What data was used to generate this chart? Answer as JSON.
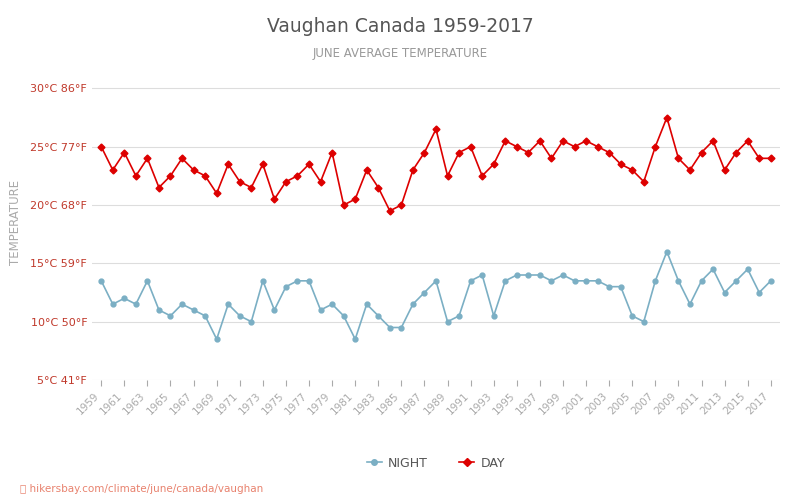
{
  "title": "Vaughan Canada 1959-2017",
  "subtitle": "JUNE AVERAGE TEMPERATURE",
  "ylabel": "TEMPERATURE",
  "footer": "hikersbay.com/climate/june/canada/vaughan",
  "years": [
    1959,
    1960,
    1961,
    1962,
    1963,
    1964,
    1965,
    1966,
    1967,
    1968,
    1969,
    1970,
    1971,
    1972,
    1973,
    1974,
    1975,
    1976,
    1977,
    1978,
    1979,
    1980,
    1981,
    1982,
    1983,
    1984,
    1985,
    1986,
    1987,
    1988,
    1989,
    1990,
    1991,
    1992,
    1993,
    1994,
    1995,
    1996,
    1997,
    1998,
    1999,
    2000,
    2001,
    2002,
    2003,
    2004,
    2005,
    2006,
    2007,
    2008,
    2009,
    2010,
    2011,
    2012,
    2013,
    2014,
    2015,
    2016,
    2017
  ],
  "day_temps": [
    25.0,
    23.0,
    24.5,
    22.5,
    24.0,
    21.5,
    22.5,
    24.0,
    23.0,
    22.5,
    21.0,
    23.5,
    22.0,
    21.5,
    23.5,
    20.5,
    22.0,
    22.5,
    23.5,
    22.0,
    24.5,
    20.0,
    20.5,
    23.0,
    21.5,
    19.5,
    20.0,
    23.0,
    24.5,
    26.5,
    22.5,
    24.5,
    25.0,
    22.5,
    23.5,
    25.5,
    25.0,
    24.5,
    25.5,
    24.0,
    25.5,
    25.0,
    25.5,
    25.0,
    24.5,
    23.5,
    23.0,
    22.0,
    25.0,
    27.5,
    24.0,
    23.0,
    24.5,
    25.5,
    23.0,
    24.5,
    25.5,
    24.0,
    24.0
  ],
  "night_temps": [
    13.5,
    11.5,
    12.0,
    11.5,
    13.5,
    11.0,
    10.5,
    11.5,
    11.0,
    10.5,
    8.5,
    11.5,
    10.5,
    10.0,
    13.5,
    11.0,
    13.0,
    13.5,
    13.5,
    11.0,
    11.5,
    10.5,
    8.5,
    11.5,
    10.5,
    9.5,
    9.5,
    11.5,
    12.5,
    13.5,
    10.0,
    10.5,
    13.5,
    14.0,
    10.5,
    13.5,
    14.0,
    14.0,
    14.0,
    13.5,
    14.0,
    13.5,
    13.5,
    13.5,
    13.0,
    13.0,
    10.5,
    10.0,
    13.5,
    16.0,
    13.5,
    11.5,
    13.5,
    14.5,
    12.5,
    13.5,
    14.5,
    12.5,
    13.5
  ],
  "day_color": "#dd0000",
  "night_color": "#7bafc4",
  "title_color": "#555555",
  "subtitle_color": "#999999",
  "ylabel_color": "#aaaaaa",
  "tick_color": "#aaaaaa",
  "ytick_color": "#c0392b",
  "grid_color": "#dddddd",
  "footer_color": "#e8826e",
  "background_color": "#ffffff",
  "ylim": [
    5,
    32
  ],
  "yticks_c": [
    5,
    10,
    15,
    20,
    25,
    30
  ],
  "yticks_f": [
    41,
    50,
    59,
    68,
    77,
    86
  ]
}
